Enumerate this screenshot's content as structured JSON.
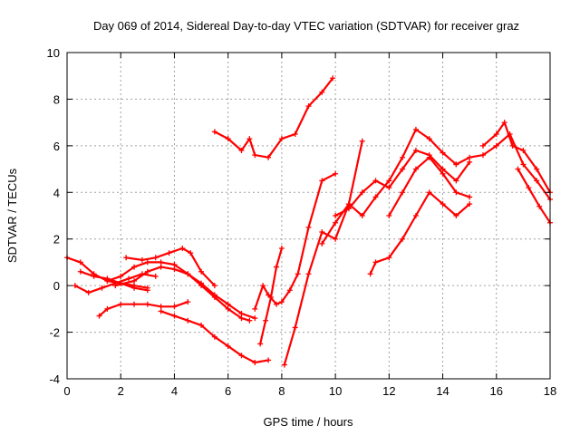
{
  "chart_data": {
    "type": "scatter",
    "title": "Day 069 of 2014, Sidereal Day-to-day VTEC variation (SDTVAR) for receiver graz",
    "xlabel": "GPS time / hours",
    "ylabel": "SDTVAR / TECUs",
    "xlim": [
      0,
      18
    ],
    "ylim": [
      -4,
      10
    ],
    "xticks": [
      0,
      2,
      4,
      6,
      8,
      10,
      12,
      14,
      16,
      18
    ],
    "yticks": [
      -4,
      -2,
      0,
      2,
      4,
      6,
      8,
      10
    ],
    "xtick_labels": [
      "0",
      "2",
      "4",
      "6",
      "8",
      "10",
      "12",
      "14",
      "16",
      "18"
    ],
    "ytick_labels": [
      "-4",
      "-2",
      "0",
      "2",
      "4",
      "6",
      "8",
      "10"
    ],
    "grid": true,
    "marker": "+",
    "color": "#ff0000",
    "series": [
      {
        "name": "s1",
        "x": [
          0,
          0.5,
          1.0,
          1.5,
          2.0,
          2.5,
          3.0
        ],
        "y": [
          1.2,
          1.0,
          0.5,
          0.2,
          0.1,
          0.0,
          -0.1
        ]
      },
      {
        "name": "s2",
        "x": [
          0.3,
          0.8,
          1.3,
          1.8,
          2.3,
          2.8,
          3.3
        ],
        "y": [
          0.0,
          -0.3,
          -0.1,
          0.1,
          0.3,
          0.5,
          0.4
        ]
      },
      {
        "name": "s3",
        "x": [
          0.5,
          1.0,
          1.5,
          2.0,
          2.5,
          3.0
        ],
        "y": [
          0.6,
          0.4,
          0.3,
          0.1,
          -0.1,
          -0.2
        ]
      },
      {
        "name": "s4",
        "x": [
          1.2,
          1.5,
          2.0,
          2.5,
          3.0,
          3.5,
          4.0,
          4.5
        ],
        "y": [
          -1.3,
          -1.0,
          -0.8,
          -0.8,
          -0.8,
          -0.9,
          -0.9,
          -0.7
        ]
      },
      {
        "name": "s5",
        "x": [
          1.5,
          2.0,
          2.5,
          3.0,
          3.5,
          4.0,
          4.5,
          5.0,
          5.5,
          6.0,
          6.5,
          6.8
        ],
        "y": [
          0.2,
          0.4,
          0.8,
          1.0,
          1.0,
          0.9,
          0.5,
          0.0,
          -0.5,
          -1.0,
          -1.4,
          -1.5
        ]
      },
      {
        "name": "s6",
        "x": [
          1.8,
          2.5,
          3.0,
          3.5,
          4.0,
          4.5,
          5.0,
          5.5,
          6.0,
          6.5,
          7.0
        ],
        "y": [
          0.0,
          0.2,
          0.6,
          0.8,
          0.7,
          0.5,
          0.1,
          -0.4,
          -0.8,
          -1.2,
          -1.4
        ]
      },
      {
        "name": "s7",
        "x": [
          2.2,
          2.8,
          3.3,
          3.8,
          4.3,
          4.6,
          5.0,
          5.5
        ],
        "y": [
          1.2,
          1.1,
          1.2,
          1.4,
          1.6,
          1.4,
          0.6,
          0.0
        ]
      },
      {
        "name": "s8",
        "x": [
          3.5,
          4.0,
          4.5,
          5.0,
          5.5,
          6.0,
          6.5,
          7.0,
          7.5
        ],
        "y": [
          -1.1,
          -1.3,
          -1.5,
          -1.7,
          -2.2,
          -2.6,
          -3.0,
          -3.3,
          -3.2
        ]
      },
      {
        "name": "s9",
        "x": [
          5.5,
          6.0,
          6.5,
          6.8,
          7.0,
          7.5,
          8.0,
          8.5,
          9.0,
          9.5,
          9.9
        ],
        "y": [
          6.6,
          6.3,
          5.8,
          6.3,
          5.6,
          5.5,
          6.3,
          6.5,
          7.7,
          8.3,
          8.9
        ]
      },
      {
        "name": "s10",
        "x": [
          7.0,
          7.3,
          7.5,
          7.8,
          8.0,
          8.3,
          8.6,
          9.0,
          9.5,
          10.0
        ],
        "y": [
          -1.0,
          0.0,
          -0.4,
          -0.8,
          -0.7,
          -0.2,
          0.5,
          2.5,
          4.5,
          4.8
        ]
      },
      {
        "name": "s11",
        "x": [
          7.2,
          7.4,
          7.6,
          7.8,
          8.0
        ],
        "y": [
          -2.5,
          -1.5,
          -0.5,
          0.8,
          1.6
        ]
      },
      {
        "name": "s12",
        "x": [
          8.1,
          8.5,
          9.0,
          9.5,
          10.0,
          10.5,
          11.0
        ],
        "y": [
          -3.4,
          -1.8,
          0.5,
          2.3,
          2.0,
          3.5,
          6.2
        ]
      },
      {
        "name": "s13",
        "x": [
          9.5,
          10.0,
          10.5,
          11.0,
          11.5,
          12.0,
          12.5,
          13.0,
          13.5,
          14.0,
          14.5
        ],
        "y": [
          1.8,
          2.7,
          3.5,
          3.0,
          3.8,
          4.5,
          5.5,
          6.7,
          6.3,
          5.7,
          5.2
        ]
      },
      {
        "name": "s14",
        "x": [
          10.0,
          10.5,
          11.0,
          11.5,
          12.0,
          12.5,
          13.0,
          13.5,
          14.0,
          14.5,
          15.0
        ],
        "y": [
          3.0,
          3.3,
          4.0,
          4.5,
          4.2,
          5.0,
          5.8,
          5.6,
          5.0,
          4.5,
          5.3
        ]
      },
      {
        "name": "s15",
        "x": [
          11.3,
          11.5,
          12.0,
          12.5,
          13.0,
          13.5,
          14.0,
          14.5,
          15.0
        ],
        "y": [
          0.5,
          1.0,
          1.2,
          2.0,
          3.0,
          4.0,
          3.5,
          3.0,
          3.5
        ]
      },
      {
        "name": "s16",
        "x": [
          12.0,
          12.5,
          13.0,
          13.5,
          14.0,
          14.5,
          15.0
        ],
        "y": [
          3.0,
          4.0,
          5.0,
          5.5,
          4.8,
          4.0,
          3.8
        ]
      },
      {
        "name": "s17",
        "x": [
          14.5,
          15.0,
          15.5,
          16.0,
          16.5,
          17.0,
          17.5,
          18.0
        ],
        "y": [
          5.2,
          5.5,
          5.6,
          6.0,
          6.5,
          5.2,
          4.5,
          3.7
        ]
      },
      {
        "name": "s18",
        "x": [
          15.5,
          16.0,
          16.3,
          16.6,
          17.0,
          17.5,
          18.0
        ],
        "y": [
          6.0,
          6.5,
          7.0,
          6.0,
          5.8,
          5.0,
          4.0
        ]
      },
      {
        "name": "s19",
        "x": [
          16.8,
          17.2,
          17.6,
          18.0
        ],
        "y": [
          5.0,
          4.2,
          3.4,
          2.7
        ]
      }
    ]
  }
}
